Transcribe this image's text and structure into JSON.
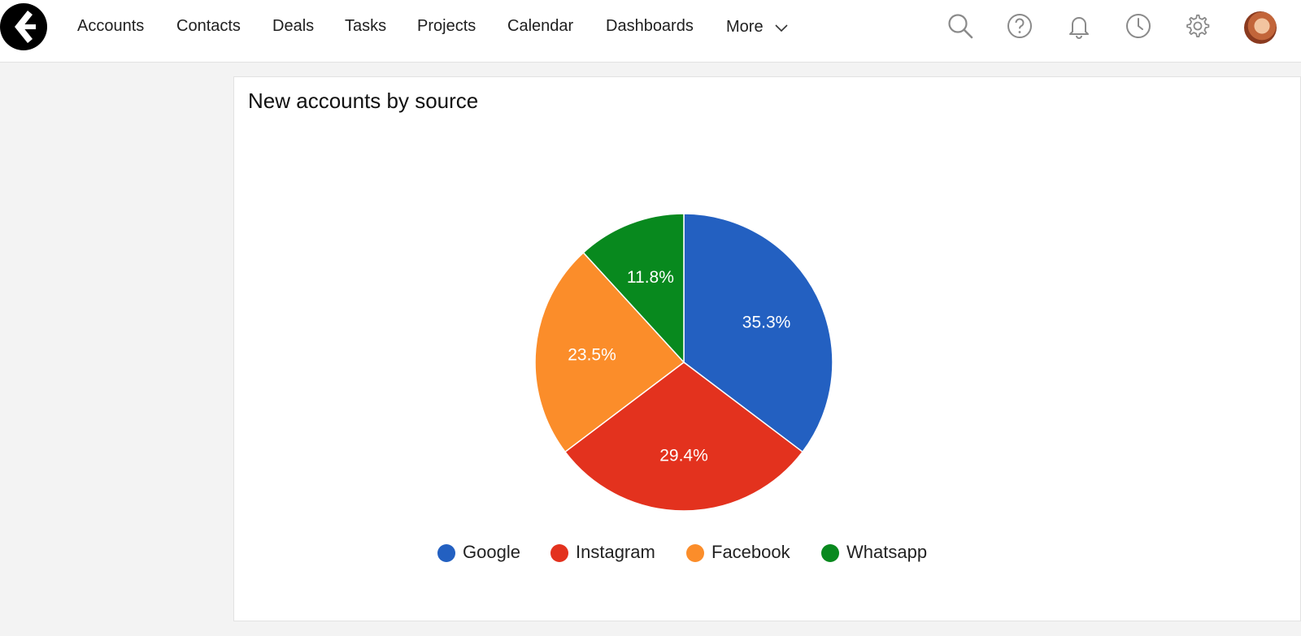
{
  "nav": {
    "items": [
      {
        "label": "Accounts"
      },
      {
        "label": "Contacts"
      },
      {
        "label": "Deals"
      },
      {
        "label": "Tasks"
      },
      {
        "label": "Projects"
      },
      {
        "label": "Calendar"
      },
      {
        "label": "Dashboards"
      },
      {
        "label": "More"
      }
    ]
  },
  "toolbar": {
    "icons": [
      "search-icon",
      "help-icon",
      "bell-icon",
      "clock-icon",
      "gear-icon"
    ]
  },
  "colors": {
    "icon_gray": "#8a8a8a",
    "logo_bg": "#000000"
  },
  "panel": {
    "title": "New accounts by source"
  },
  "chart_data": {
    "type": "pie",
    "title": "New accounts by source",
    "legend_position": "bottom",
    "slices": [
      {
        "label": "Google",
        "value": 35.3,
        "display": "35.3%",
        "color": "#2360c1"
      },
      {
        "label": "Instagram",
        "value": 29.4,
        "display": "29.4%",
        "color": "#e3321e"
      },
      {
        "label": "Facebook",
        "value": 23.5,
        "display": "23.5%",
        "color": "#fb8d2a"
      },
      {
        "label": "Whatsapp",
        "value": 11.8,
        "display": "11.8%",
        "color": "#08891e"
      }
    ]
  }
}
